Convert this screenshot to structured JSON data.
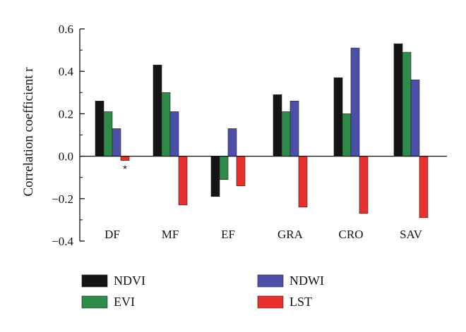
{
  "chart_data": {
    "type": "bar",
    "title": "",
    "xlabel": "",
    "ylabel": "Correlation coefficient r",
    "ylim": [
      -0.4,
      0.6
    ],
    "yticks": [
      -0.4,
      -0.2,
      0.0,
      0.2,
      0.4,
      0.6
    ],
    "ytick_labels": [
      "−0.4",
      "−0.2",
      "0.0",
      "0.2",
      "0.4",
      "0.6"
    ],
    "categories": [
      "DF",
      "MF",
      "EF",
      "GRA",
      "CRO",
      "SAV"
    ],
    "series": [
      {
        "name": "NDVI",
        "color": "#141414",
        "values": [
          0.26,
          0.43,
          -0.19,
          0.29,
          0.37,
          0.53
        ]
      },
      {
        "name": "EVI",
        "color": "#2e8b4a",
        "values": [
          0.21,
          0.3,
          -0.11,
          0.21,
          0.2,
          0.49
        ]
      },
      {
        "name": "NDWI",
        "color": "#4b4fa8",
        "values": [
          0.13,
          0.21,
          0.13,
          0.26,
          0.51,
          0.36
        ]
      },
      {
        "name": "LST",
        "color": "#e8302c",
        "values": [
          -0.02,
          -0.23,
          -0.14,
          -0.24,
          -0.27,
          -0.29
        ]
      }
    ],
    "annotations": [
      {
        "text": "*",
        "category": "DF",
        "series": "LST"
      }
    ],
    "grid": false,
    "legend": "bottom"
  }
}
